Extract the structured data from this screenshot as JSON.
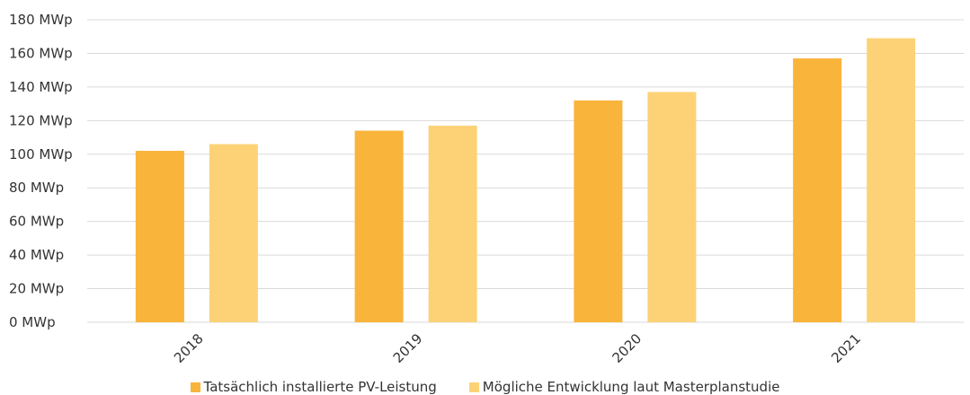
{
  "chart_data": {
    "type": "bar",
    "categories": [
      "2018",
      "2019",
      "2020",
      "2021"
    ],
    "series": [
      {
        "name": "Tatsächlich installierte PV-Leistung",
        "values": [
          102,
          114,
          132,
          157
        ],
        "color": "#f9b43b"
      },
      {
        "name": "Mögliche Entwicklung laut Masterplanstudie",
        "values": [
          106,
          117,
          137,
          169
        ],
        "color": "#fdd276"
      }
    ],
    "y_ticks": [
      "0 MWp",
      "20 MWp",
      "40 MWp",
      "60 MWp",
      "80 MWp",
      "100 MWp",
      "120 MWp",
      "140 MWp",
      "160 MWp",
      "180 MWp"
    ],
    "ylim": [
      0,
      180
    ],
    "grid": true,
    "legend_position": "bottom"
  }
}
